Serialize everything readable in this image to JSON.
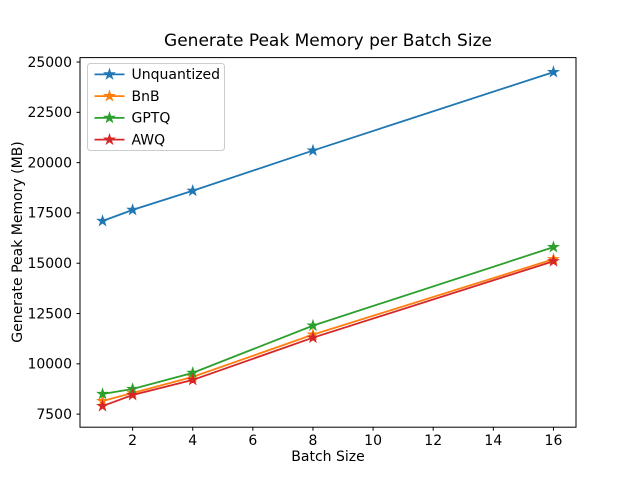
{
  "figure": {
    "background": "#ffffff",
    "spine_color": "#000000",
    "legend_border_color": "#cccccc",
    "legend_background": "#ffffff"
  },
  "chart_data": {
    "type": "line",
    "title": "Generate Peak Memory per Batch Size",
    "xlabel": "Batch Size",
    "ylabel": "Generate Peak Memory (MB)",
    "x": [
      1,
      2,
      4,
      8,
      16
    ],
    "series": [
      {
        "name": "Unquantized",
        "color": "#1f77b4",
        "marker": "star",
        "values": [
          17100,
          17650,
          18600,
          20600,
          24500
        ]
      },
      {
        "name": "BnB",
        "color": "#ff7f0e",
        "marker": "star",
        "values": [
          8150,
          8550,
          9350,
          11450,
          15200
        ]
      },
      {
        "name": "GPTQ",
        "color": "#2ca02c",
        "marker": "star",
        "values": [
          8500,
          8750,
          9550,
          11900,
          15800
        ]
      },
      {
        "name": "AWQ",
        "color": "#d62728",
        "marker": "star",
        "values": [
          7900,
          8450,
          9200,
          11300,
          15100
        ]
      }
    ],
    "xticks": [
      2,
      4,
      6,
      8,
      10,
      12,
      14,
      16
    ],
    "yticks": [
      7500,
      10000,
      12500,
      15000,
      17500,
      20000,
      22500,
      25000
    ],
    "xlim": [
      0.25,
      16.75
    ],
    "ylim": [
      6850,
      25220
    ],
    "legend_position": "upper left",
    "grid": false
  }
}
